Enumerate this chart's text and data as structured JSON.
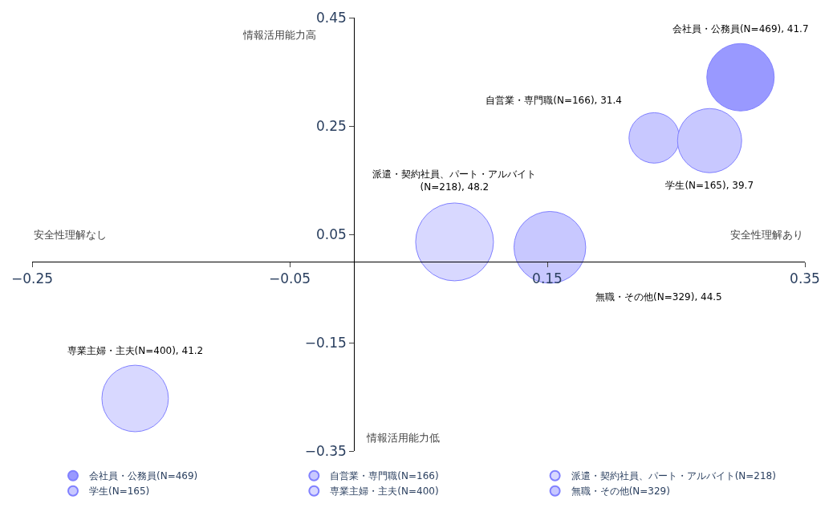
{
  "chart_data": {
    "type": "bubble",
    "xlim": [
      -0.25,
      0.35
    ],
    "xticks": [
      {
        "value": -0.25,
        "label": "−0.25"
      },
      {
        "value": -0.05,
        "label": "−0.05"
      },
      0.15,
      0.35
    ],
    "ylim": [
      -0.35,
      0.45
    ],
    "yticks": [
      {
        "value": -0.35,
        "label": "−0.35"
      },
      {
        "value": -0.15,
        "label": "−0.15"
      },
      0.05,
      0.25,
      0.45
    ],
    "legend": "bottom",
    "annotations": [
      "情報活用能力高",
      "情報活用能力低",
      "安全性理解なし",
      "安全性理解あり"
    ],
    "series": [
      {
        "name": "会社員・公務員(N=469)",
        "color": "#9999ff",
        "x": [
          0.3
        ],
        "values": [
          0.34
        ],
        "sizes": [
          0.75
        ],
        "value_labels": [
          "会社員・公務員(N=469), 41.7"
        ]
      },
      {
        "name": "自営業・専門職(N=166)",
        "color": "#c8c8ff",
        "x": [
          0.233
        ],
        "values": [
          0.228
        ],
        "sizes": [
          0.42
        ],
        "value_labels": [
          "自営業・専門職(N=166), 31.4"
        ]
      },
      {
        "name": "派遣・契約社員、パート・アルバイト(N=218)",
        "color": "#d8d8ff",
        "x": [
          0.078
        ],
        "values": [
          0.036
        ],
        "sizes": [
          1
        ],
        "value_labels": [
          "派遣・契約社員、パート・アルバイト(N=218), 48.2"
        ]
      },
      {
        "name": "学生(N=165)",
        "color": "#c8c8ff",
        "x": [
          0.276
        ],
        "values": [
          0.223
        ],
        "sizes": [
          0.68
        ],
        "value_labels": [
          "学生(N=165), 39.7"
        ]
      },
      {
        "name": "専業主婦・主夫(N=400)",
        "color": "#d8d8ff",
        "x": [
          -0.17
        ],
        "values": [
          -0.253
        ],
        "sizes": [
          0.73
        ],
        "value_labels": [
          "専業主婦・主夫(N=400), 41.2"
        ]
      },
      {
        "name": "無職・その他(N=329)",
        "color": "#c8c8ff",
        "x": [
          0.152
        ],
        "values": [
          0.026
        ],
        "sizes": [
          0.85
        ],
        "value_labels": [
          "無職・その他(N=329), 44.5"
        ]
      }
    ]
  }
}
